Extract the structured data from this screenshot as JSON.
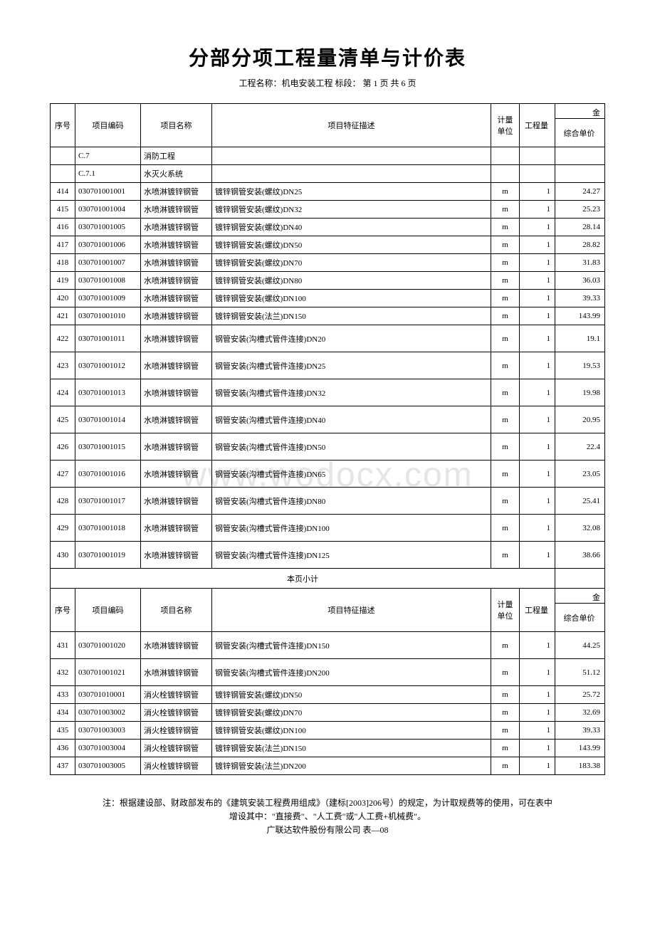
{
  "title": "分部分项工程量清单与计价表",
  "subtitle": "工程名称：机电安装工程 标段：  第 1 页  共 6 页",
  "watermark": "www.wodocx.com",
  "headers": {
    "seq": "序号",
    "code": "项目编码",
    "name": "项目名称",
    "desc": "项目特征描述",
    "unit": "计量单位",
    "qty": "工程量",
    "jin": "金",
    "price": "综合单价"
  },
  "subtotal_label": "本页小计",
  "table1_rows": [
    {
      "seq": "",
      "code": "C.7",
      "name": "消防工程",
      "desc": "",
      "unit": "",
      "qty": "",
      "price": "",
      "tall": false
    },
    {
      "seq": "",
      "code": "C.7.1",
      "name": "水灭火系统",
      "desc": "",
      "unit": "",
      "qty": "",
      "price": "",
      "tall": false
    },
    {
      "seq": "414",
      "code": "030701001001",
      "name": "水喷淋镀锌钢管",
      "desc": "镀锌钢管安装(螺纹)DN25",
      "unit": "m",
      "qty": "1",
      "price": "24.27",
      "tall": false
    },
    {
      "seq": "415",
      "code": "030701001004",
      "name": "水喷淋镀锌钢管",
      "desc": "镀锌钢管安装(螺纹)DN32",
      "unit": "m",
      "qty": "1",
      "price": "25.23",
      "tall": false
    },
    {
      "seq": "416",
      "code": "030701001005",
      "name": "水喷淋镀锌钢管",
      "desc": "镀锌钢管安装(螺纹)DN40",
      "unit": "m",
      "qty": "1",
      "price": "28.14",
      "tall": false
    },
    {
      "seq": "417",
      "code": "030701001006",
      "name": "水喷淋镀锌钢管",
      "desc": "镀锌钢管安装(螺纹)DN50",
      "unit": "m",
      "qty": "1",
      "price": "28.82",
      "tall": false
    },
    {
      "seq": "418",
      "code": "030701001007",
      "name": "水喷淋镀锌钢管",
      "desc": "镀锌钢管安装(螺纹)DN70",
      "unit": "m",
      "qty": "1",
      "price": "31.83",
      "tall": false
    },
    {
      "seq": "419",
      "code": "030701001008",
      "name": "水喷淋镀锌钢管",
      "desc": "镀锌钢管安装(螺纹)DN80",
      "unit": "m",
      "qty": "1",
      "price": "36.03",
      "tall": false
    },
    {
      "seq": "420",
      "code": "030701001009",
      "name": "水喷淋镀锌钢管",
      "desc": "镀锌钢管安装(螺纹)DN100",
      "unit": "m",
      "qty": "1",
      "price": "39.33",
      "tall": false
    },
    {
      "seq": "421",
      "code": "030701001010",
      "name": "水喷淋镀锌钢管",
      "desc": "镀锌钢管安装(法兰)DN150",
      "unit": "m",
      "qty": "1",
      "price": "143.99",
      "tall": false
    },
    {
      "seq": "422",
      "code": "030701001011",
      "name": "水喷淋镀锌钢管",
      "desc": "钢管安装(沟槽式管件连接)DN20",
      "unit": "m",
      "qty": "1",
      "price": "19.1",
      "tall": true
    },
    {
      "seq": "423",
      "code": "030701001012",
      "name": "水喷淋镀锌钢管",
      "desc": "钢管安装(沟槽式管件连接)DN25",
      "unit": "m",
      "qty": "1",
      "price": "19.53",
      "tall": true
    },
    {
      "seq": "424",
      "code": "030701001013",
      "name": "水喷淋镀锌钢管",
      "desc": "钢管安装(沟槽式管件连接)DN32",
      "unit": "m",
      "qty": "1",
      "price": "19.98",
      "tall": true
    },
    {
      "seq": "425",
      "code": "030701001014",
      "name": "水喷淋镀锌钢管",
      "desc": "钢管安装(沟槽式管件连接)DN40",
      "unit": "m",
      "qty": "1",
      "price": "20.95",
      "tall": true
    },
    {
      "seq": "426",
      "code": "030701001015",
      "name": "水喷淋镀锌钢管",
      "desc": "钢管安装(沟槽式管件连接)DN50",
      "unit": "m",
      "qty": "1",
      "price": "22.4",
      "tall": true
    },
    {
      "seq": "427",
      "code": "030701001016",
      "name": "水喷淋镀锌钢管",
      "desc": "钢管安装(沟槽式管件连接)DN65",
      "unit": "m",
      "qty": "1",
      "price": "23.05",
      "tall": true
    },
    {
      "seq": "428",
      "code": "030701001017",
      "name": "水喷淋镀锌钢管",
      "desc": "钢管安装(沟槽式管件连接)DN80",
      "unit": "m",
      "qty": "1",
      "price": "25.41",
      "tall": true
    },
    {
      "seq": "429",
      "code": "030701001018",
      "name": "水喷淋镀锌钢管",
      "desc": "钢管安装(沟槽式管件连接)DN100",
      "unit": "m",
      "qty": "1",
      "price": "32.08",
      "tall": true
    },
    {
      "seq": "430",
      "code": "030701001019",
      "name": "水喷淋镀锌钢管",
      "desc": "钢管安装(沟槽式管件连接)DN125",
      "unit": "m",
      "qty": "1",
      "price": "38.66",
      "tall": true
    }
  ],
  "table2_rows": [
    {
      "seq": "431",
      "code": "030701001020",
      "name": "水喷淋镀锌钢管",
      "desc": "钢管安装(沟槽式管件连接)DN150",
      "unit": "m",
      "qty": "1",
      "price": "44.25",
      "tall": true
    },
    {
      "seq": "432",
      "code": "030701001021",
      "name": "水喷淋镀锌钢管",
      "desc": "钢管安装(沟槽式管件连接)DN200",
      "unit": "m",
      "qty": "1",
      "price": "51.12",
      "tall": true
    },
    {
      "seq": "433",
      "code": "030701010001",
      "name": "消火栓镀锌钢管",
      "desc": "镀锌钢管安装(螺纹)DN50",
      "unit": "m",
      "qty": "1",
      "price": "25.72",
      "tall": false
    },
    {
      "seq": "434",
      "code": "030701003002",
      "name": "消火栓镀锌钢管",
      "desc": "镀锌钢管安装(螺纹)DN70",
      "unit": "m",
      "qty": "1",
      "price": "32.69",
      "tall": false
    },
    {
      "seq": "435",
      "code": "030701003003",
      "name": "消火栓镀锌钢管",
      "desc": "镀锌钢管安装(螺纹)DN100",
      "unit": "m",
      "qty": "1",
      "price": "39.33",
      "tall": false
    },
    {
      "seq": "436",
      "code": "030701003004",
      "name": "消火栓镀锌钢管",
      "desc": "镀锌钢管安装(法兰)DN150",
      "unit": "m",
      "qty": "1",
      "price": "143.99",
      "tall": false
    },
    {
      "seq": "437",
      "code": "030701003005",
      "name": "消火栓镀锌钢管",
      "desc": "镀锌钢管安装(法兰)DN200",
      "unit": "m",
      "qty": "1",
      "price": "183.38",
      "tall": false
    }
  ],
  "footer": {
    "line1": "注：根据建设部、财政部发布的《建筑安装工程费用组成》（建标[2003]206号）的规定，为计取规费等的使用，可在表中",
    "line2": "增设其中：\"直接费\"、\"人工费\"或\"人工费+机械费\"。",
    "line3": "广联达软件股份有限公司 表—08"
  }
}
